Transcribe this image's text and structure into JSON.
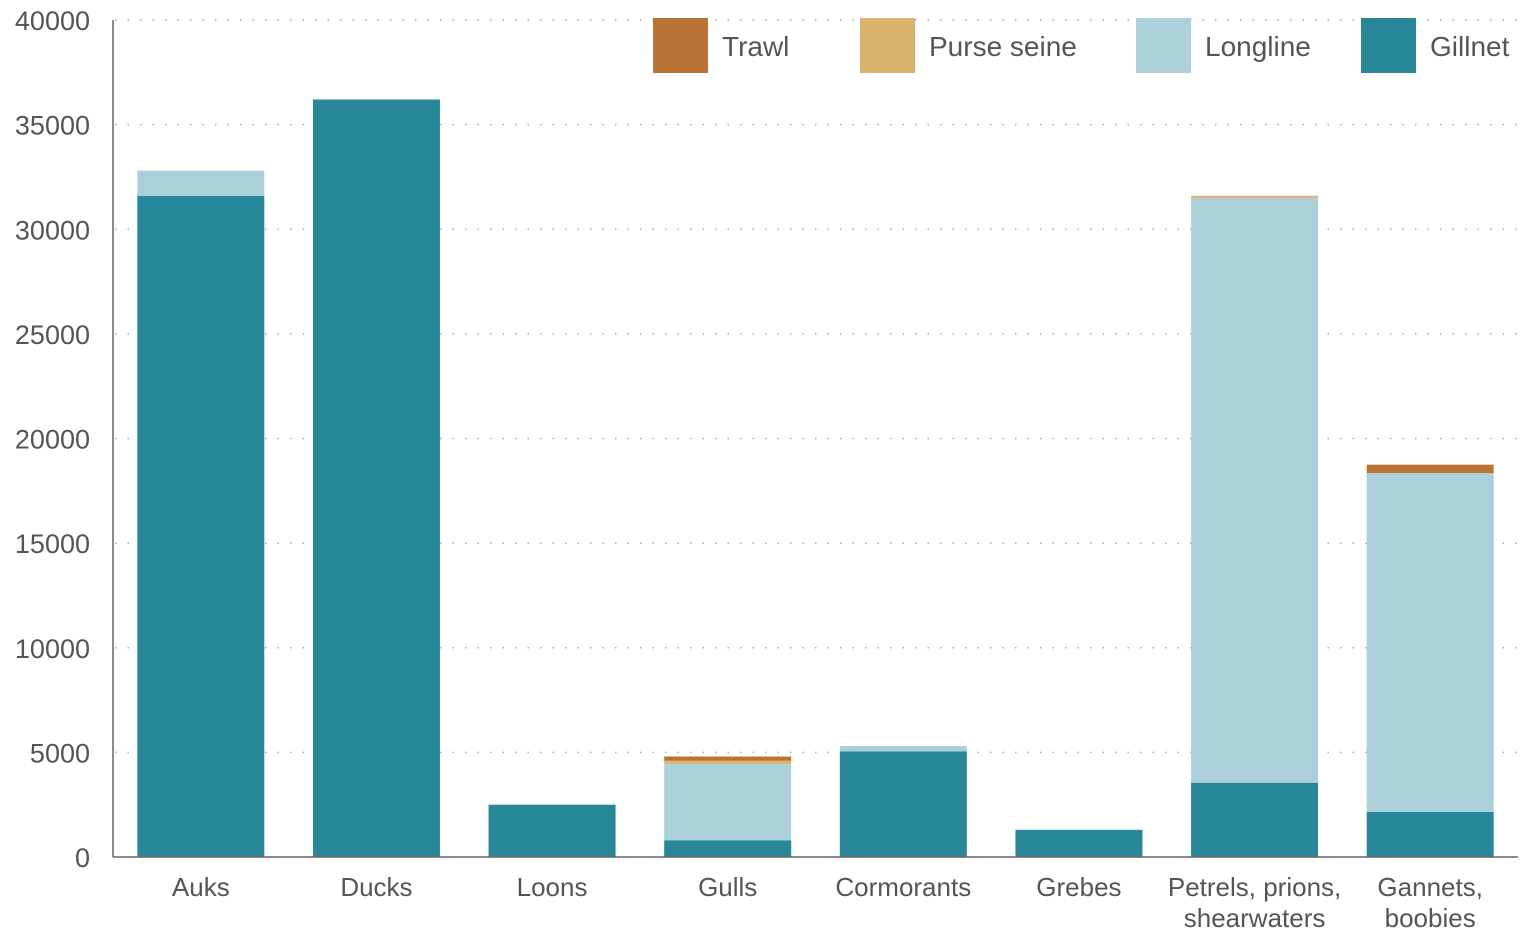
{
  "chart_data": {
    "type": "bar",
    "stacked": true,
    "title": "",
    "xlabel": "",
    "ylabel": "",
    "ylim": [
      0,
      40000
    ],
    "yticks": [
      0,
      5000,
      10000,
      15000,
      20000,
      25000,
      30000,
      35000,
      40000
    ],
    "grid": true,
    "legend_position": "top-right",
    "categories": [
      [
        "Auks"
      ],
      [
        "Ducks"
      ],
      [
        "Loons"
      ],
      [
        "Gulls"
      ],
      [
        "Cormorants"
      ],
      [
        "Grebes"
      ],
      [
        "Petrels, prions,",
        "shearwaters"
      ],
      [
        "Gannets,",
        "boobies"
      ]
    ],
    "series": [
      {
        "name": "Gillnet",
        "color": "#288899",
        "values": [
          31600,
          36200,
          2500,
          800,
          5050,
          1300,
          3550,
          2150
        ]
      },
      {
        "name": "Longline",
        "color": "#abd0d9",
        "values": [
          1200,
          0,
          0,
          3650,
          250,
          0,
          27950,
          16200
        ]
      },
      {
        "name": "Purse seine",
        "color": "#dbb36d",
        "values": [
          0,
          0,
          0,
          150,
          0,
          0,
          100,
          0
        ]
      },
      {
        "name": "Trawl",
        "color": "#ba7335",
        "values": [
          0,
          0,
          0,
          200,
          0,
          0,
          0,
          400
        ]
      }
    ],
    "legend_order": [
      "Trawl",
      "Purse seine",
      "Longline",
      "Gillnet"
    ]
  }
}
